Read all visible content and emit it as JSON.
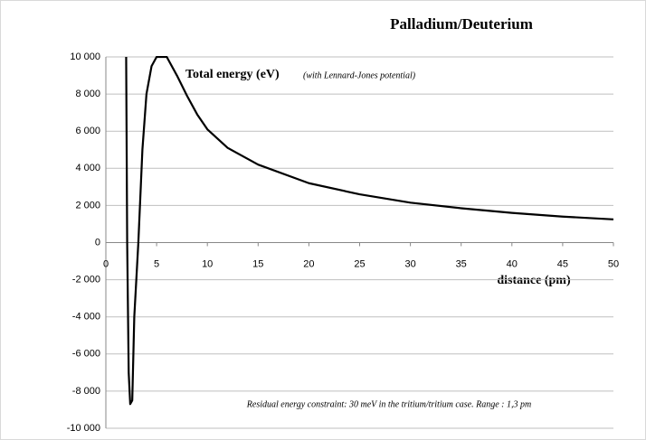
{
  "chart_data": {
    "type": "line",
    "title": "Palladium/Deuterium",
    "annotation": "Total energy (eV)",
    "annotation_note": "(with Lennard-Jones potential)",
    "footnote": "Residual energy constraint: 30 meV in the tritium/tritium case. Range : 1,3 pm",
    "x_label": "distance (pm)",
    "x": [
      2.0,
      2.1,
      2.25,
      2.4,
      2.6,
      2.8,
      3.2,
      3.6,
      4.0,
      4.5,
      5.0,
      6.0,
      7.0,
      8.0,
      9.0,
      10,
      12,
      15,
      20,
      25,
      30,
      35,
      40,
      45,
      50
    ],
    "series": [
      {
        "name": "Total energy",
        "color": "#000000",
        "values": [
          10000,
          0,
          -7000,
          -8700,
          -8500,
          -4000,
          0,
          5000,
          8000,
          9500,
          10000,
          10000,
          9000,
          7900,
          6900,
          6100,
          5100,
          4200,
          3200,
          2600,
          2150,
          1850,
          1600,
          1400,
          1250
        ]
      }
    ],
    "xlim": [
      0,
      50
    ],
    "xticks": [
      0,
      5,
      10,
      15,
      20,
      25,
      30,
      35,
      40,
      45,
      50
    ],
    "ylim": [
      -10000,
      10000
    ],
    "yticks": [
      {
        "value": -10000,
        "label": "-10 000"
      },
      {
        "value": -8000,
        "label": "-8 000"
      },
      {
        "value": -6000,
        "label": "-6 000"
      },
      {
        "value": -4000,
        "label": "-4 000"
      },
      {
        "value": -2000,
        "label": "-2 000"
      },
      0,
      {
        "value": 2000,
        "label": "2 000"
      },
      {
        "value": 4000,
        "label": "4 000"
      },
      {
        "value": 6000,
        "label": "6 000"
      },
      {
        "value": 8000,
        "label": "8 000"
      },
      {
        "value": 10000,
        "label": "10 000"
      }
    ],
    "grid": true
  }
}
